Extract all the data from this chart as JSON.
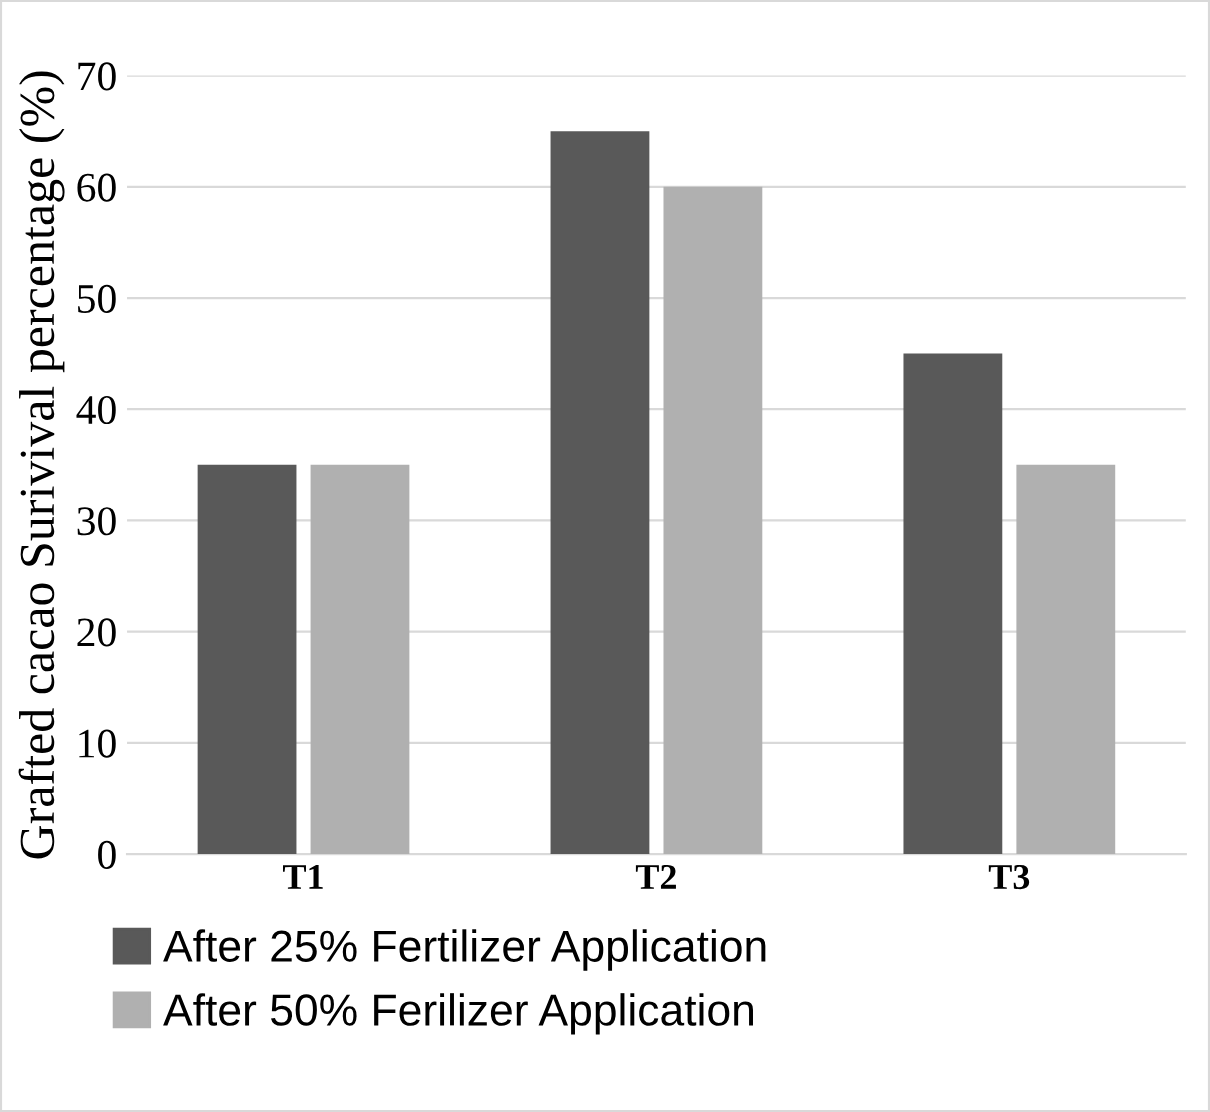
{
  "chart_data": {
    "type": "bar",
    "ylabel": "Grafted cacao Surivival percentage (%)",
    "categories": [
      "T1",
      "T2",
      "T3"
    ],
    "series": [
      {
        "name": "After 25% Fertilizer Application",
        "color": "#595959",
        "values": [
          35,
          65,
          45
        ]
      },
      {
        "name": "After 50% Ferilizer Application",
        "color": "#b0b0b0",
        "values": [
          35,
          60,
          35
        ]
      }
    ],
    "ylim": [
      0,
      70
    ],
    "yticks": [
      0,
      10,
      20,
      30,
      40,
      50,
      60,
      70
    ],
    "grid": "y",
    "legend": "bottom"
  }
}
